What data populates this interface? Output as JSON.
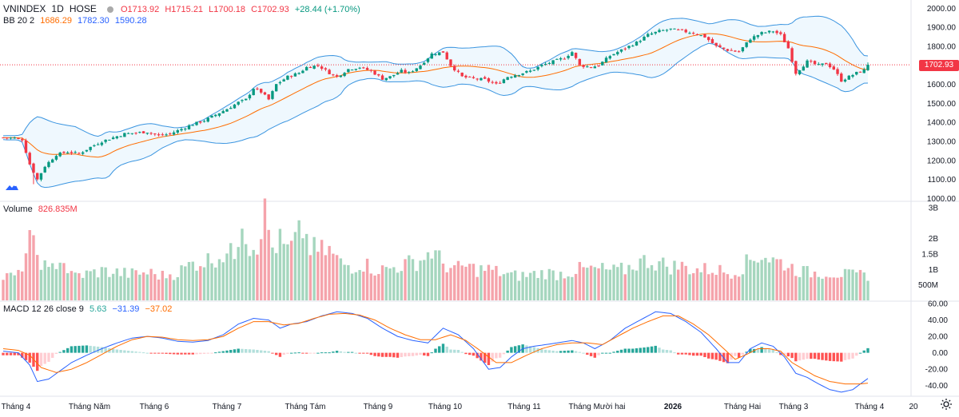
{
  "header": {
    "symbol": "VNINDEX",
    "interval": "1D",
    "exchange": "HOSE",
    "open": "O1713.92",
    "high": "H1715.21",
    "low": "L1700.18",
    "close": "C1702.93",
    "change": "+28.44 (+1.70%)",
    "bb_label": "BB 20 2",
    "bb_basis": "1686.29",
    "bb_upper": "1782.30",
    "bb_lower": "1590.28",
    "current_price_tag": "1702.93"
  },
  "volume_legend": {
    "label": "Volume",
    "value": "826.835M"
  },
  "macd_legend": {
    "label": "MACD 12 26 close 9",
    "hist": "5.63",
    "macd": "−31.39",
    "signal": "−37.02"
  },
  "colors": {
    "up": "#089981",
    "down": "#f23645",
    "volume_up": "#a5d6be",
    "volume_down": "#f5a3ab",
    "bb_band": "#3b95e0",
    "bb_basis": "#ff6d00",
    "bb_fill": "rgba(33,150,243,0.07)",
    "macd_line": "#2962ff",
    "signal_line": "#ff6d00",
    "hist_up_strong": "#26a69a",
    "hist_up_weak": "#b2dfdb",
    "hist_down_strong": "#ff5252",
    "hist_down_weak": "#ffcdd2",
    "price_line": "#f23645"
  },
  "icons": {
    "logo": "tradingview-logo-icon",
    "settings": "gear-icon"
  },
  "chart_data": [
    {
      "type": "candlestick",
      "title": "VNINDEX 1D HOSE",
      "y_ticks": [
        "1000.00",
        "1100.00",
        "1200.00",
        "1300.00",
        "1400.00",
        "1500.00",
        "1600.00",
        "1700.00",
        "1800.00",
        "1900.00",
        "2000.00"
      ],
      "ylim": [
        985,
        2010
      ],
      "x_ticks": [
        "Tháng 4",
        "Tháng Năm",
        "Tháng 6",
        "Tháng 7",
        "Tháng Tám",
        "Tháng 9",
        "Tháng 10",
        "Tháng 11",
        "Tháng Mười hai",
        "2026",
        "Tháng Hai",
        "Tháng 3",
        "Tháng 4",
        "20"
      ],
      "last_close": 1702.93,
      "bollinger": {
        "period": 20,
        "stddev": 2,
        "basis": 1686.29,
        "upper": 1782.3,
        "lower": 1590.28
      },
      "close_anchors": [
        [
          0,
          1320
        ],
        [
          3,
          1318
        ],
        [
          5,
          1310
        ],
        [
          7,
          1180
        ],
        [
          9,
          1100
        ],
        [
          11,
          1170
        ],
        [
          14,
          1230
        ],
        [
          17,
          1245
        ],
        [
          20,
          1235
        ],
        [
          23,
          1270
        ],
        [
          26,
          1300
        ],
        [
          29,
          1320
        ],
        [
          32,
          1340
        ],
        [
          35,
          1345
        ],
        [
          38,
          1350
        ],
        [
          41,
          1330
        ],
        [
          44,
          1340
        ],
        [
          47,
          1365
        ],
        [
          50,
          1390
        ],
        [
          53,
          1410
        ],
        [
          56,
          1440
        ],
        [
          59,
          1470
        ],
        [
          62,
          1505
        ],
        [
          64,
          1520
        ],
        [
          66,
          1580
        ],
        [
          68,
          1560
        ],
        [
          70,
          1520
        ],
        [
          72,
          1600
        ],
        [
          75,
          1640
        ],
        [
          78,
          1660
        ],
        [
          80,
          1690
        ],
        [
          83,
          1700
        ],
        [
          86,
          1660
        ],
        [
          88,
          1640
        ],
        [
          91,
          1680
        ],
        [
          94,
          1690
        ],
        [
          97,
          1670
        ],
        [
          100,
          1630
        ],
        [
          102,
          1640
        ],
        [
          105,
          1670
        ],
        [
          107,
          1660
        ],
        [
          110,
          1700
        ],
        [
          113,
          1760
        ],
        [
          116,
          1770
        ],
        [
          118,
          1700
        ],
        [
          121,
          1640
        ],
        [
          124,
          1630
        ],
        [
          127,
          1625
        ],
        [
          130,
          1600
        ],
        [
          133,
          1640
        ],
        [
          136,
          1655
        ],
        [
          139,
          1670
        ],
        [
          142,
          1700
        ],
        [
          145,
          1720
        ],
        [
          148,
          1740
        ],
        [
          150,
          1770
        ],
        [
          152,
          1700
        ],
        [
          155,
          1690
        ],
        [
          157,
          1700
        ],
        [
          160,
          1750
        ],
        [
          163,
          1780
        ],
        [
          165,
          1800
        ],
        [
          167,
          1820
        ],
        [
          170,
          1860
        ],
        [
          173,
          1880
        ],
        [
          176,
          1890
        ],
        [
          179,
          1880
        ],
        [
          182,
          1870
        ],
        [
          185,
          1850
        ],
        [
          188,
          1800
        ],
        [
          191,
          1780
        ],
        [
          194,
          1770
        ],
        [
          197,
          1840
        ],
        [
          200,
          1870
        ],
        [
          203,
          1880
        ],
        [
          205,
          1860
        ],
        [
          207,
          1790
        ],
        [
          209,
          1660
        ],
        [
          212,
          1720
        ],
        [
          215,
          1700
        ],
        [
          217,
          1710
        ],
        [
          219,
          1680
        ],
        [
          221,
          1620
        ],
        [
          223,
          1640
        ],
        [
          225,
          1660
        ],
        [
          227,
          1674
        ],
        [
          228,
          1702.93
        ]
      ]
    },
    {
      "type": "bar",
      "title": "Volume",
      "last_value": "826.835M",
      "y_ticks": [
        "500M",
        "1B",
        "1.5B",
        "2B",
        "3B"
      ],
      "ylim": [
        0,
        3.0
      ],
      "unit": "billion shares",
      "volume_anchors": [
        [
          0,
          0.75
        ],
        [
          4,
          0.8
        ],
        [
          7,
          1.9
        ],
        [
          9,
          1.5
        ],
        [
          12,
          0.9
        ],
        [
          15,
          1.4
        ],
        [
          18,
          0.8
        ],
        [
          22,
          0.85
        ],
        [
          26,
          0.95
        ],
        [
          30,
          0.9
        ],
        [
          34,
          0.85
        ],
        [
          38,
          0.9
        ],
        [
          42,
          0.8
        ],
        [
          46,
          0.9
        ],
        [
          50,
          1.2
        ],
        [
          54,
          1.3
        ],
        [
          58,
          1.5
        ],
        [
          61,
          1.5
        ],
        [
          63,
          2.8
        ],
        [
          65,
          1.7
        ],
        [
          67,
          1.9
        ],
        [
          69,
          2.8
        ],
        [
          71,
          1.7
        ],
        [
          73,
          1.9
        ],
        [
          75,
          1.6
        ],
        [
          77,
          1.9
        ],
        [
          79,
          2.3
        ],
        [
          81,
          1.7
        ],
        [
          83,
          1.6
        ],
        [
          86,
          1.6
        ],
        [
          89,
          1.2
        ],
        [
          92,
          1.1
        ],
        [
          95,
          1.2
        ],
        [
          98,
          1.0
        ],
        [
          101,
          1.0
        ],
        [
          104,
          1.1
        ],
        [
          107,
          1.2
        ],
        [
          110,
          1.3
        ],
        [
          113,
          1.6
        ],
        [
          116,
          1.2
        ],
        [
          119,
          1.0
        ],
        [
          122,
          1.1
        ],
        [
          125,
          1.0
        ],
        [
          128,
          1.0
        ],
        [
          131,
          0.9
        ],
        [
          134,
          0.8
        ],
        [
          137,
          0.8
        ],
        [
          140,
          0.85
        ],
        [
          143,
          0.9
        ],
        [
          146,
          0.85
        ],
        [
          149,
          0.9
        ],
        [
          152,
          1.0
        ],
        [
          155,
          1.0
        ],
        [
          158,
          1.0
        ],
        [
          161,
          0.95
        ],
        [
          164,
          1.0
        ],
        [
          167,
          1.2
        ],
        [
          170,
          1.3
        ],
        [
          173,
          1.2
        ],
        [
          176,
          1.1
        ],
        [
          179,
          1.1
        ],
        [
          182,
          1.0
        ],
        [
          185,
          1.0
        ],
        [
          188,
          1.0
        ],
        [
          191,
          0.9
        ],
        [
          194,
          1.0
        ],
        [
          197,
          1.3
        ],
        [
          200,
          1.5
        ],
        [
          203,
          1.3
        ],
        [
          206,
          1.2
        ],
        [
          209,
          1.0
        ],
        [
          212,
          0.9
        ],
        [
          215,
          0.9
        ],
        [
          218,
          0.9
        ],
        [
          221,
          0.85
        ],
        [
          224,
          0.8
        ],
        [
          228,
          0.83
        ]
      ]
    },
    {
      "type": "line",
      "title": "MACD 12 26 close 9",
      "y_ticks": [
        "-40.00",
        "-20.00",
        "0.00",
        "20.00",
        "40.00",
        "60.00"
      ],
      "ylim": [
        -52,
        62
      ],
      "series": [
        {
          "name": "MACD",
          "last": -31.39
        },
        {
          "name": "Signal",
          "last": -37.02
        },
        {
          "name": "Histogram",
          "last": 5.63
        }
      ],
      "macd_anchors": [
        [
          0,
          2
        ],
        [
          4,
          0
        ],
        [
          7,
          -15
        ],
        [
          9,
          -35
        ],
        [
          12,
          -32
        ],
        [
          15,
          -22
        ],
        [
          18,
          -12
        ],
        [
          22,
          -3
        ],
        [
          26,
          5
        ],
        [
          30,
          12
        ],
        [
          34,
          18
        ],
        [
          38,
          20
        ],
        [
          42,
          18
        ],
        [
          46,
          14
        ],
        [
          50,
          13
        ],
        [
          54,
          15
        ],
        [
          58,
          22
        ],
        [
          62,
          35
        ],
        [
          66,
          42
        ],
        [
          70,
          40
        ],
        [
          73,
          30
        ],
        [
          76,
          35
        ],
        [
          80,
          38
        ],
        [
          84,
          45
        ],
        [
          88,
          50
        ],
        [
          92,
          48
        ],
        [
          96,
          42
        ],
        [
          100,
          30
        ],
        [
          104,
          20
        ],
        [
          108,
          15
        ],
        [
          112,
          12
        ],
        [
          116,
          30
        ],
        [
          120,
          22
        ],
        [
          124,
          5
        ],
        [
          128,
          -20
        ],
        [
          131,
          -18
        ],
        [
          134,
          -5
        ],
        [
          137,
          5
        ],
        [
          140,
          8
        ],
        [
          143,
          10
        ],
        [
          146,
          12
        ],
        [
          150,
          15
        ],
        [
          153,
          12
        ],
        [
          156,
          5
        ],
        [
          160,
          15
        ],
        [
          164,
          30
        ],
        [
          168,
          40
        ],
        [
          172,
          50
        ],
        [
          176,
          48
        ],
        [
          180,
          38
        ],
        [
          184,
          25
        ],
        [
          188,
          5
        ],
        [
          191,
          -12
        ],
        [
          194,
          -12
        ],
        [
          197,
          5
        ],
        [
          200,
          12
        ],
        [
          203,
          8
        ],
        [
          206,
          -5
        ],
        [
          209,
          -25
        ],
        [
          212,
          -30
        ],
        [
          215,
          -38
        ],
        [
          218,
          -45
        ],
        [
          221,
          -48
        ],
        [
          224,
          -45
        ],
        [
          226,
          -38
        ],
        [
          228,
          -31.39
        ]
      ],
      "signal_anchors": [
        [
          0,
          5
        ],
        [
          4,
          3
        ],
        [
          7,
          -3
        ],
        [
          10,
          -18
        ],
        [
          14,
          -24
        ],
        [
          18,
          -20
        ],
        [
          22,
          -12
        ],
        [
          26,
          -2
        ],
        [
          30,
          8
        ],
        [
          34,
          16
        ],
        [
          38,
          20
        ],
        [
          42,
          19
        ],
        [
          46,
          16
        ],
        [
          50,
          15
        ],
        [
          54,
          16
        ],
        [
          58,
          20
        ],
        [
          62,
          30
        ],
        [
          66,
          38
        ],
        [
          70,
          38
        ],
        [
          74,
          34
        ],
        [
          78,
          36
        ],
        [
          82,
          42
        ],
        [
          86,
          47
        ],
        [
          90,
          48
        ],
        [
          94,
          46
        ],
        [
          98,
          40
        ],
        [
          102,
          30
        ],
        [
          106,
          22
        ],
        [
          110,
          16
        ],
        [
          114,
          16
        ],
        [
          118,
          22
        ],
        [
          122,
          15
        ],
        [
          126,
          2
        ],
        [
          130,
          -12
        ],
        [
          134,
          -12
        ],
        [
          138,
          -3
        ],
        [
          142,
          5
        ],
        [
          146,
          10
        ],
        [
          150,
          12
        ],
        [
          154,
          12
        ],
        [
          158,
          10
        ],
        [
          162,
          20
        ],
        [
          166,
          30
        ],
        [
          170,
          38
        ],
        [
          174,
          45
        ],
        [
          178,
          45
        ],
        [
          182,
          35
        ],
        [
          186,
          22
        ],
        [
          190,
          5
        ],
        [
          193,
          -8
        ],
        [
          196,
          -2
        ],
        [
          199,
          5
        ],
        [
          202,
          5
        ],
        [
          205,
          2
        ],
        [
          208,
          -12
        ],
        [
          211,
          -20
        ],
        [
          214,
          -28
        ],
        [
          218,
          -35
        ],
        [
          222,
          -38
        ],
        [
          226,
          -38
        ],
        [
          228,
          -37.02
        ]
      ]
    }
  ]
}
